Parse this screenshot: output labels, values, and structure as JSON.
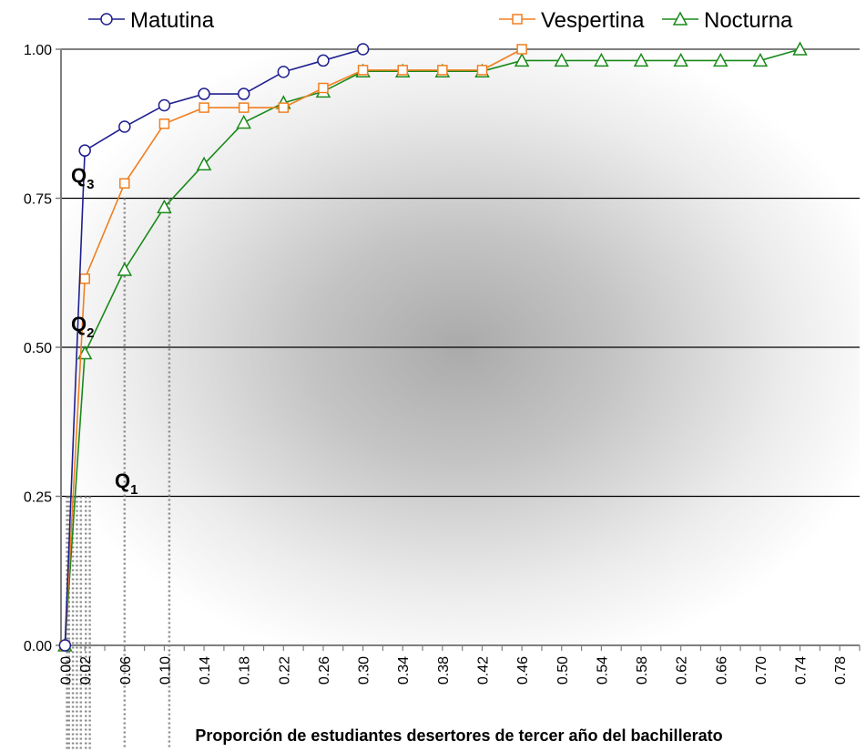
{
  "chart_data": {
    "type": "line",
    "title": "",
    "xlabel": "Proporción de estudiantes desertores de tercer año del bachillerato",
    "ylabel": "",
    "xlim": [
      -0.004,
      0.8
    ],
    "ylim": [
      0,
      1
    ],
    "x_ticks": [
      "0.00",
      "0.02",
      "0.06",
      "0.10",
      "0.14",
      "0.18",
      "0.22",
      "0.26",
      "0.30",
      "0.34",
      "0.38",
      "0.42",
      "0.46",
      "0.50",
      "0.54",
      "0.58",
      "0.62",
      "0.66",
      "0.70",
      "0.74",
      "0.78"
    ],
    "y_ticks": [
      "0.00",
      "0.25",
      "0.50",
      "0.75",
      "1.00"
    ],
    "gridlines_y": [
      0.25,
      0.5,
      0.75,
      1.0
    ],
    "legend_position": "top",
    "series": [
      {
        "name": "Matutina",
        "color": "#1f1f8f",
        "marker": "circle",
        "points": [
          [
            0.0,
            0.0
          ],
          [
            0.02,
            0.83
          ],
          [
            0.06,
            0.87
          ],
          [
            0.1,
            0.906
          ],
          [
            0.14,
            0.925
          ],
          [
            0.18,
            0.925
          ],
          [
            0.22,
            0.962
          ],
          [
            0.26,
            0.981
          ],
          [
            0.3,
            1.0
          ]
        ]
      },
      {
        "name": "Vespertina",
        "color": "#f07f20",
        "marker": "square",
        "points": [
          [
            0.0,
            0.0
          ],
          [
            0.02,
            0.615
          ],
          [
            0.06,
            0.775
          ],
          [
            0.1,
            0.875
          ],
          [
            0.14,
            0.902
          ],
          [
            0.18,
            0.902
          ],
          [
            0.22,
            0.902
          ],
          [
            0.26,
            0.935
          ],
          [
            0.3,
            0.965
          ],
          [
            0.34,
            0.965
          ],
          [
            0.38,
            0.965
          ],
          [
            0.42,
            0.965
          ],
          [
            0.46,
            1.0
          ]
        ]
      },
      {
        "name": "Nocturna",
        "color": "#1a8a1a",
        "marker": "triangle",
        "points": [
          [
            0.0,
            0.0
          ],
          [
            0.02,
            0.49
          ],
          [
            0.06,
            0.63
          ],
          [
            0.1,
            0.735
          ],
          [
            0.14,
            0.807
          ],
          [
            0.18,
            0.877
          ],
          [
            0.22,
            0.91
          ],
          [
            0.26,
            0.929
          ],
          [
            0.3,
            0.963
          ],
          [
            0.34,
            0.963
          ],
          [
            0.38,
            0.963
          ],
          [
            0.42,
            0.963
          ],
          [
            0.46,
            0.981
          ],
          [
            0.5,
            0.981
          ],
          [
            0.54,
            0.981
          ],
          [
            0.58,
            0.981
          ],
          [
            0.62,
            0.981
          ],
          [
            0.66,
            0.981
          ],
          [
            0.7,
            0.981
          ],
          [
            0.74,
            1.0
          ]
        ]
      }
    ],
    "quartile_annotations": [
      {
        "label": "Q",
        "sub": "1",
        "y": 0.25
      },
      {
        "label": "Q",
        "sub": "2",
        "y": 0.5
      },
      {
        "label": "Q",
        "sub": "3",
        "y": 0.75
      }
    ],
    "dotted_droplines_x": [
      0.002,
      0.004,
      0.008,
      0.012,
      0.016,
      0.021,
      0.025,
      0.06,
      0.105
    ]
  }
}
